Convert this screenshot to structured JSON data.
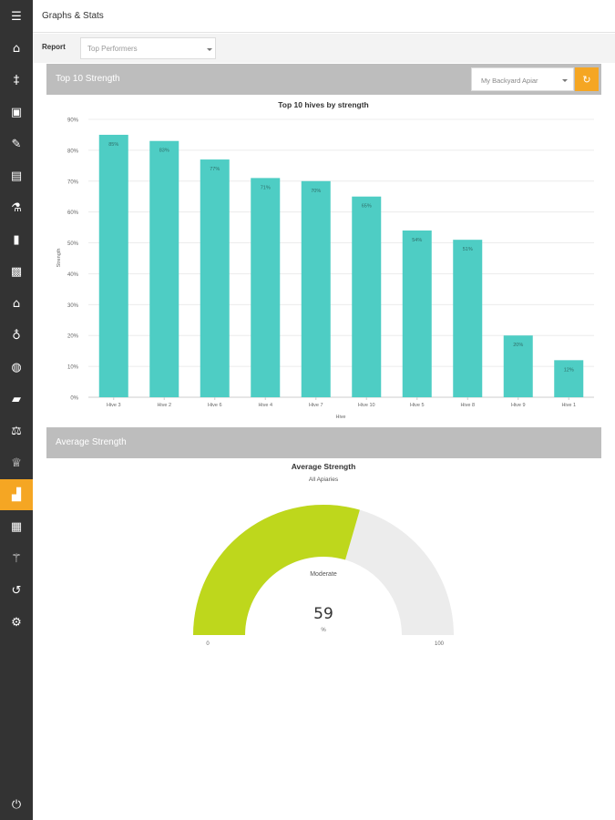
{
  "header": {
    "title": "Graphs & Stats"
  },
  "report": {
    "label": "Report",
    "selected": "Top Performers"
  },
  "sidebar": {
    "items": [
      {
        "name": "menu-icon",
        "glyph": "☰"
      },
      {
        "name": "home-icon",
        "glyph": "⌂"
      },
      {
        "name": "apiary-icon",
        "glyph": "‡"
      },
      {
        "name": "inbox-icon",
        "glyph": "▣"
      },
      {
        "name": "edit-icon",
        "glyph": "✎"
      },
      {
        "name": "list-icon",
        "glyph": "▤"
      },
      {
        "name": "flask-icon",
        "glyph": "⚗"
      },
      {
        "name": "jar-icon",
        "glyph": "▮"
      },
      {
        "name": "toolbox-icon",
        "glyph": "▩"
      },
      {
        "name": "hive-icon",
        "glyph": "⌂"
      },
      {
        "name": "money-bag-icon",
        "glyph": "♁"
      },
      {
        "name": "globe-icon",
        "glyph": "◍"
      },
      {
        "name": "folder-icon",
        "glyph": "▰"
      },
      {
        "name": "balance-icon",
        "glyph": "⚖"
      },
      {
        "name": "basket-icon",
        "glyph": "♕"
      },
      {
        "name": "chart-icon",
        "glyph": "▟",
        "active": true
      },
      {
        "name": "grid-icon",
        "glyph": "▦"
      },
      {
        "name": "magic-wand-icon",
        "glyph": "⚚"
      },
      {
        "name": "history-icon",
        "glyph": "↺"
      },
      {
        "name": "settings-icon",
        "glyph": "⚙"
      },
      {
        "name": "power-icon",
        "glyph": "⏻"
      }
    ]
  },
  "panel1": {
    "title": "Top 10 Strength",
    "apiary_selected": "My Backyard Apiar",
    "refresh_icon": "↻"
  },
  "panel2": {
    "title": "Average Strength"
  },
  "colors": {
    "bar": "#4ecdc4",
    "gauge_fill": "#bed71c",
    "gauge_track": "#ececec",
    "accent": "#f5a623"
  },
  "chart_data": [
    {
      "type": "bar",
      "title": "Top 10 hives by strength",
      "xlabel": "Hive",
      "ylabel": "Strength",
      "categories": [
        "Hive 3",
        "Hive 2",
        "Hive 6",
        "Hive 4",
        "Hive 7",
        "Hive 10",
        "Hive 5",
        "Hive 8",
        "Hive 9",
        "Hive 1"
      ],
      "values": [
        85,
        83,
        77,
        71,
        70,
        65,
        54,
        51,
        20,
        12
      ],
      "data_labels": [
        "85%",
        "83%",
        "77%",
        "71%",
        "70%",
        "65%",
        "54%",
        "51%",
        "20%",
        "12%"
      ],
      "yticks": [
        "0%",
        "10%",
        "20%",
        "30%",
        "40%",
        "50%",
        "60%",
        "70%",
        "80%",
        "90%"
      ],
      "ylim": [
        0,
        90
      ],
      "grid": true
    },
    {
      "type": "gauge",
      "title": "Average Strength",
      "subtitle": "All Apiaries",
      "value": 59,
      "value_text": "59",
      "unit": "%",
      "band_label": "Moderate",
      "min": 0,
      "max": 100,
      "min_label": "0",
      "max_label": "100"
    }
  ]
}
